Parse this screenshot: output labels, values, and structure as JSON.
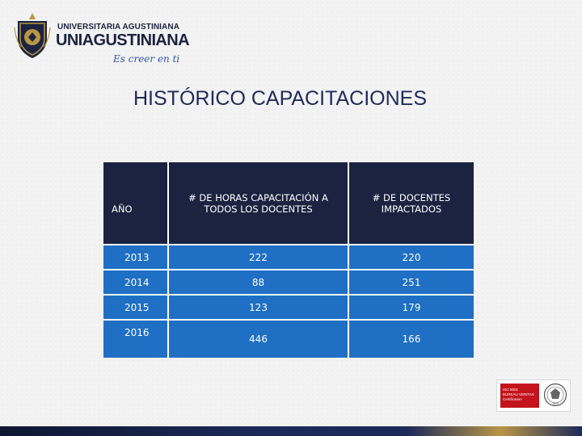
{
  "logo": {
    "line1": "UNIVERSITARIA AGUSTINIANA",
    "line2": "UNIAGUSTINIANA",
    "slogan": "Es creer en ti"
  },
  "title": "HISTÓRICO CAPACITACIONES",
  "table": {
    "headers": [
      "AÑO",
      "# DE HORAS CAPACITACIÓN A TODOS LOS DOCENTES",
      "# DE DOCENTES IMPACTADOS"
    ],
    "rows": [
      [
        "2013",
        "222",
        "220"
      ],
      [
        "2014",
        "88",
        "251"
      ],
      [
        "2015",
        "123",
        "179"
      ],
      [
        "2016",
        "446",
        "166"
      ]
    ]
  },
  "certification": {
    "lines": [
      "ISO 9001",
      "BUREAU VERITAS",
      "Certification"
    ],
    "seal_year": "1828"
  },
  "colors": {
    "header_bg": "#1c2340",
    "row_bg": "#1f6fc4",
    "title": "#1e2a5a",
    "brand_gold": "#b89645",
    "cert_red": "#c3131c"
  }
}
